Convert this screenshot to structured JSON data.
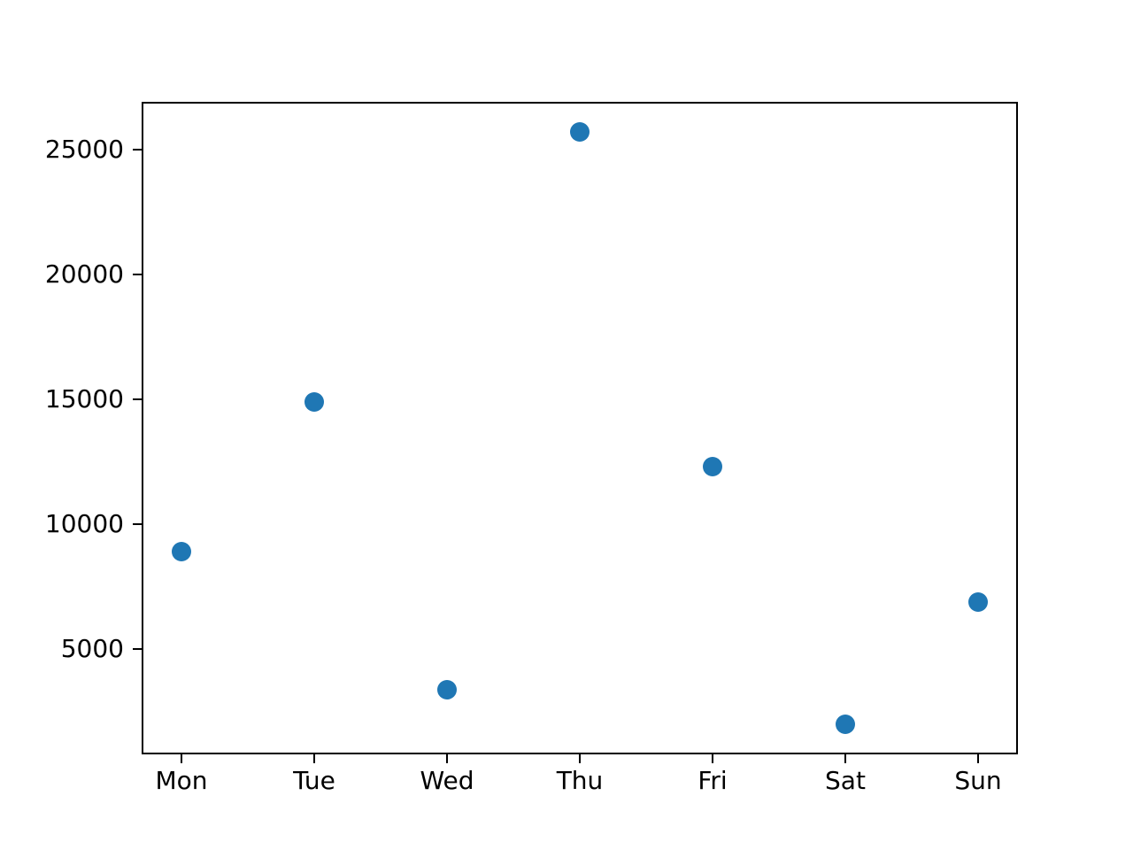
{
  "figure": {
    "background_color": "#ffffff",
    "axis_color": "#000000",
    "text_color": "#000000",
    "marker_color": "#1f77b4"
  },
  "chart_data": {
    "type": "scatter",
    "categories": [
      "Mon",
      "Tue",
      "Wed",
      "Thu",
      "Fri",
      "Sat",
      "Sun"
    ],
    "values": [
      8900,
      14900,
      3400,
      25700,
      12300,
      2000,
      6900
    ],
    "title": "",
    "xlabel": "",
    "ylabel": "",
    "yticks": [
      5000,
      10000,
      15000,
      20000,
      25000
    ],
    "ylim": [
      800,
      26900
    ],
    "xlim_category_units": [
      -0.3,
      6.3
    ],
    "grid": false,
    "legend": null
  }
}
